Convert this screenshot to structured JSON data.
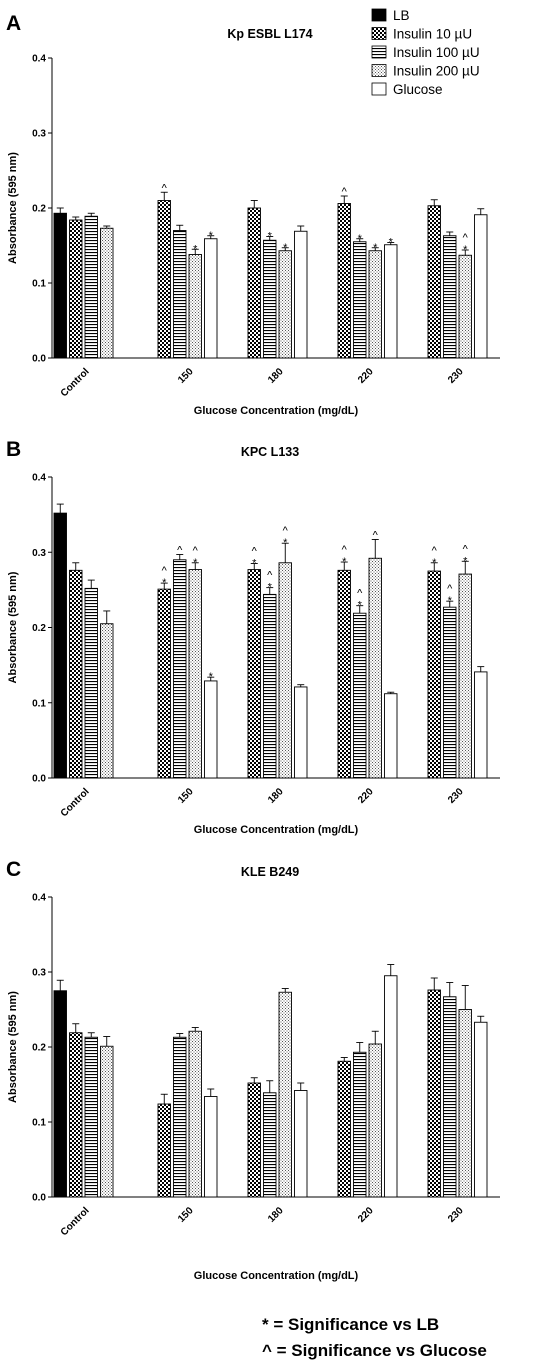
{
  "chart_data": [
    {
      "type": "bar",
      "panel": "A",
      "title": "Kp ESBL L174",
      "xlabel": "Glucose Concentration (mg/dL)",
      "ylabel": "Absorbance (595 nm)",
      "ylim": [
        0,
        0.4
      ],
      "yticks": [
        0.0,
        0.1,
        0.2,
        0.3,
        0.4
      ],
      "categories": [
        "Control",
        "150",
        "180",
        "220",
        "230"
      ],
      "series": [
        {
          "name": "LB",
          "values": [
            0.193,
            null,
            null,
            null,
            null
          ],
          "errors": [
            0.007,
            null,
            null,
            null,
            null
          ],
          "marks": [
            "",
            "",
            "",
            "",
            ""
          ]
        },
        {
          "name": "Insulin 10 µU",
          "values": [
            0.184,
            0.21,
            0.2,
            0.206,
            0.203
          ],
          "errors": [
            0.004,
            0.011,
            0.01,
            0.01,
            0.008
          ],
          "marks": [
            "",
            "^",
            "",
            "^",
            ""
          ]
        },
        {
          "name": "Insulin 100 µU",
          "values": [
            0.189,
            0.17,
            0.157,
            0.155,
            0.163
          ],
          "errors": [
            0.004,
            0.007,
            0.005,
            0.004,
            0.005
          ],
          "marks": [
            "",
            "",
            "*",
            "*",
            ""
          ]
        },
        {
          "name": "Insulin 200 µU",
          "values": [
            0.173,
            0.138,
            0.143,
            0.143,
            0.137
          ],
          "errors": [
            0.003,
            0.007,
            0.004,
            0.004,
            0.007
          ],
          "marks": [
            "",
            "*",
            "*",
            "*",
            "^\n*"
          ]
        },
        {
          "name": "Glucose",
          "values": [
            null,
            0.159,
            0.169,
            0.151,
            0.191
          ],
          "errors": [
            null,
            0.004,
            0.007,
            0.003,
            0.008
          ],
          "marks": [
            "",
            "*",
            "",
            "*",
            ""
          ]
        }
      ]
    },
    {
      "type": "bar",
      "panel": "B",
      "title": "KPC L133",
      "xlabel": "Glucose Concentration (mg/dL)",
      "ylabel": "Absorbance (595 nm)",
      "ylim": [
        0,
        0.4
      ],
      "yticks": [
        0.0,
        0.1,
        0.2,
        0.3,
        0.4
      ],
      "categories": [
        "Control",
        "150",
        "180",
        "220",
        "230"
      ],
      "series": [
        {
          "name": "LB",
          "values": [
            0.352,
            null,
            null,
            null,
            null
          ],
          "errors": [
            0.012,
            null,
            null,
            null,
            null
          ],
          "marks": [
            "",
            "",
            "",
            "",
            ""
          ]
        },
        {
          "name": "Insulin 10 µU",
          "values": [
            0.276,
            0.251,
            0.277,
            0.276,
            0.275
          ],
          "errors": [
            0.01,
            0.008,
            0.008,
            0.011,
            0.011
          ],
          "marks": [
            "",
            "^\n*",
            "^\n*",
            "^\n*",
            "^\n*"
          ]
        },
        {
          "name": "Insulin 100 µU",
          "values": [
            0.252,
            0.29,
            0.244,
            0.219,
            0.227
          ],
          "errors": [
            0.011,
            0.007,
            0.009,
            0.01,
            0.008
          ],
          "marks": [
            "",
            "^",
            "^\n*",
            "^\n*",
            "^\n*"
          ]
        },
        {
          "name": "Insulin 200 µU",
          "values": [
            0.205,
            0.277,
            0.286,
            0.292,
            0.271
          ],
          "errors": [
            0.017,
            0.009,
            0.026,
            0.025,
            0.017
          ],
          "marks": [
            "",
            "^\n*",
            "^\n*",
            "^",
            "^\n*"
          ]
        },
        {
          "name": "Glucose",
          "values": [
            null,
            0.129,
            0.121,
            0.112,
            0.141
          ],
          "errors": [
            null,
            0.005,
            0.003,
            0.002,
            0.007
          ],
          "marks": [
            "",
            "*",
            "",
            "",
            ""
          ]
        }
      ]
    },
    {
      "type": "bar",
      "panel": "C",
      "title": "KLE B249",
      "xlabel": "Glucose Concentration (mg/dL)",
      "ylabel": "Absorbance (595 nm)",
      "ylim": [
        0,
        0.4
      ],
      "yticks": [
        0.0,
        0.1,
        0.2,
        0.3,
        0.4
      ],
      "categories": [
        "Control",
        "150",
        "180",
        "220",
        "230"
      ],
      "series": [
        {
          "name": "LB",
          "values": [
            0.275,
            null,
            null,
            null,
            null
          ],
          "errors": [
            0.014,
            null,
            null,
            null,
            null
          ],
          "marks": [
            "",
            "",
            "",
            "",
            ""
          ]
        },
        {
          "name": "Insulin 10 µU",
          "values": [
            0.219,
            0.124,
            0.152,
            0.181,
            0.276
          ],
          "errors": [
            0.012,
            0.013,
            0.007,
            0.005,
            0.016
          ],
          "marks": [
            "",
            "",
            "",
            "",
            ""
          ]
        },
        {
          "name": "Insulin 100 µU",
          "values": [
            0.213,
            0.213,
            0.139,
            0.193,
            0.267
          ],
          "errors": [
            0.006,
            0.005,
            0.016,
            0.013,
            0.019
          ],
          "marks": [
            "",
            "",
            "",
            "",
            ""
          ]
        },
        {
          "name": "Insulin 200 µU",
          "values": [
            0.201,
            0.221,
            0.273,
            0.204,
            0.25
          ],
          "errors": [
            0.013,
            0.005,
            0.005,
            0.017,
            0.032
          ],
          "marks": [
            "",
            "",
            "",
            "",
            ""
          ]
        },
        {
          "name": "Glucose",
          "values": [
            null,
            0.134,
            0.142,
            0.295,
            0.233
          ],
          "errors": [
            null,
            0.01,
            0.01,
            0.015,
            0.008
          ],
          "marks": [
            "",
            "",
            "",
            "",
            ""
          ]
        }
      ]
    }
  ],
  "legend": {
    "items": [
      "LB",
      "Insulin 10 µU",
      "Insulin 100 µU",
      "Insulin 200 µU",
      "Glucose"
    ],
    "placement": "top-right"
  },
  "footnotes": {
    "star": "*  = Significance vs LB",
    "caret": "^ = Significance vs Glucose"
  }
}
